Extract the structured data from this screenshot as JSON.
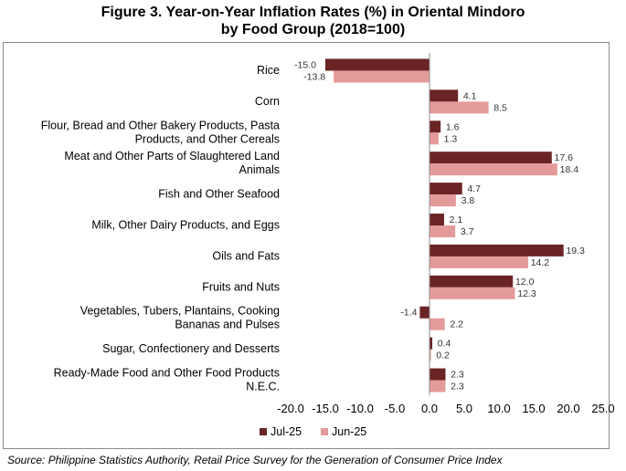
{
  "header": {
    "title_line1": "Figure 3. Year-on-Year Inflation Rates (%) in Oriental Mindoro",
    "title_line2": "by Food Group (2018=100)"
  },
  "footer": {
    "source": "Source: Philippine Statistics Authority, Retail Price Survey for the Generation of Consumer Price Index"
  },
  "colors": {
    "jul": "#6b2424",
    "jun": "#e59a9a",
    "axis": "#8c8c8c"
  },
  "chart_data": {
    "type": "bar",
    "orientation": "horizontal",
    "categories": [
      [
        "Rice"
      ],
      [
        "Corn"
      ],
      [
        "Flour, Bread and Other Bakery Products, Pasta",
        "Products, and Other Cereals"
      ],
      [
        "Meat and Other Parts of Slaughtered Land",
        "Animals"
      ],
      [
        "Fish and Other Seafood"
      ],
      [
        "Milk, Other Dairy Products, and Eggs"
      ],
      [
        "Oils and Fats"
      ],
      [
        "Fruits and Nuts"
      ],
      [
        "Vegetables, Tubers, Plantains, Cooking",
        "Bananas and Pulses"
      ],
      [
        "Sugar, Confectionery and Desserts"
      ],
      [
        "Ready-Made Food and Other Food Products",
        "N.E.C."
      ]
    ],
    "series": [
      {
        "name": "Jul-25",
        "values": [
          -15.0,
          4.1,
          1.6,
          17.6,
          4.7,
          2.1,
          19.3,
          12.0,
          -1.4,
          0.4,
          2.3
        ],
        "labels": [
          "-15.0",
          "4.1",
          "1.6",
          "17.6",
          "4.7",
          "2.1",
          "19.3",
          "12.0",
          "-1.4",
          "0.4",
          "2.3"
        ]
      },
      {
        "name": "Jun-25",
        "values": [
          -13.8,
          8.5,
          1.3,
          18.4,
          3.8,
          3.7,
          14.2,
          12.3,
          2.2,
          0.2,
          2.3
        ],
        "labels": [
          "-13.8",
          "8.5",
          "1.3",
          "18.4",
          "3.8",
          "3.7",
          "14.2",
          "12.3",
          "2.2",
          "0.2",
          "2.3"
        ]
      }
    ],
    "xlim": [
      -20,
      25
    ],
    "xticks": [
      "-20.0",
      "-15.0",
      "-10.0",
      "-5.0",
      "0.0",
      "5.0",
      "10.0",
      "15.0",
      "20.0",
      "25.0"
    ],
    "xtick_values": [
      -20,
      -15,
      -10,
      -5,
      0,
      5,
      10,
      15,
      20,
      25
    ],
    "legend_position": "bottom-left",
    "grid": false
  }
}
